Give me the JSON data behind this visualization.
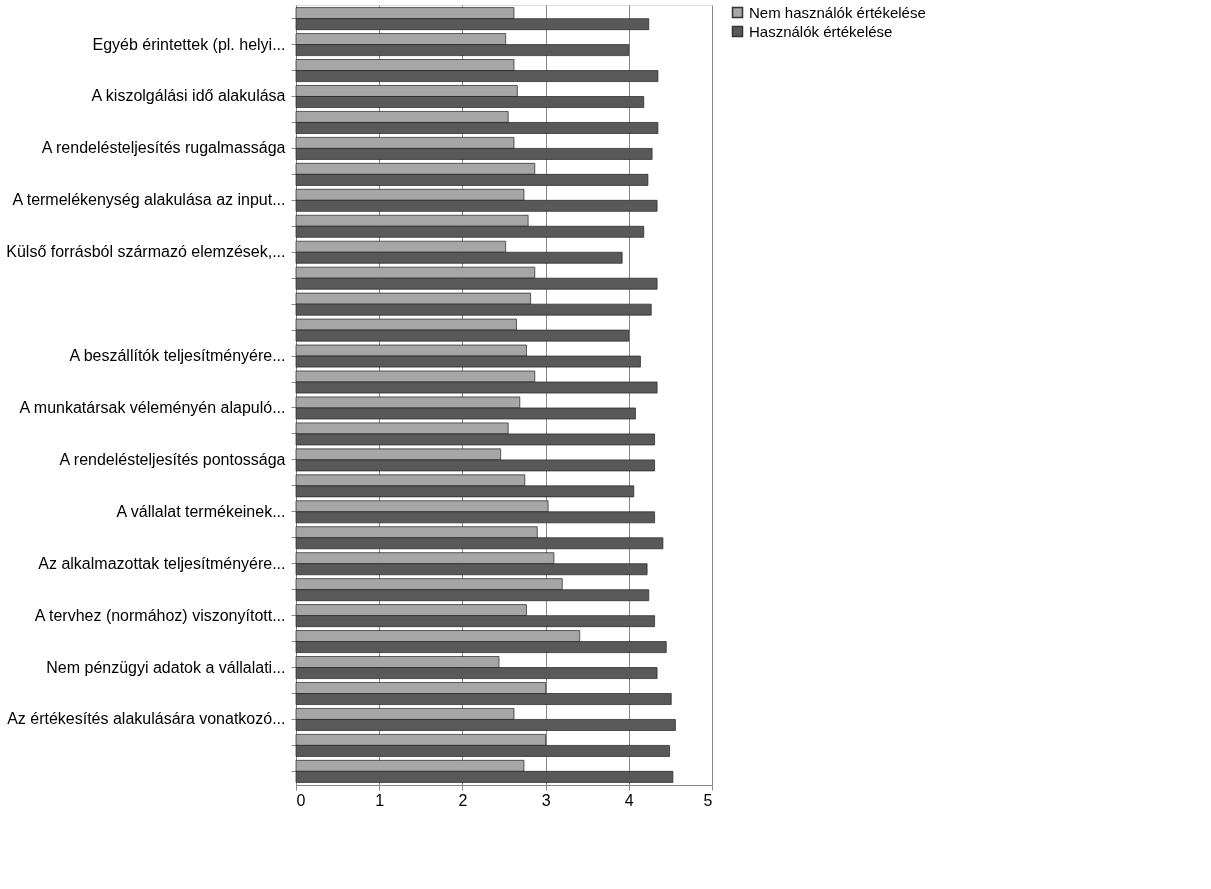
{
  "chart_data": {
    "type": "bar",
    "orientation": "horizontal",
    "categories": [
      null,
      "Egyéb érintettek (pl. helyi...",
      null,
      "A kiszolgálási idő alakulása",
      null,
      "A rendelésteljesítés  rugalmassága",
      null,
      "A termelékenység alakulása az input...",
      null,
      "Külső forrásból származó elemzések,...",
      null,
      null,
      null,
      "A beszállítók teljesítményére...",
      null,
      "A munkatársak véleményén alapuló...",
      null,
      "A rendelésteljesítés  pontossága",
      null,
      "A vállalat termékeinek...",
      null,
      "Az alkalmazottak teljesítményére...",
      null,
      "A tervhez (normához) viszonyított...",
      null,
      "Nem pénzügyi adatok a vállalati...",
      null,
      "Az értékesítés alakulására vonatkozó...",
      null,
      null
    ],
    "series": [
      {
        "name": "Nem használók értékelése",
        "color": "#a6a6a6",
        "values": [
          2.62,
          2.52,
          2.62,
          2.66,
          2.55,
          2.62,
          2.87,
          2.74,
          2.79,
          2.52,
          2.87,
          2.82,
          2.65,
          2.77,
          2.87,
          2.69,
          2.55,
          2.46,
          2.75,
          3.03,
          2.9,
          3.1,
          3.2,
          2.77,
          3.41,
          2.44,
          3.0,
          2.62,
          3.0,
          2.74
        ]
      },
      {
        "name": "Használók értékelése",
        "color": "#595959",
        "values": [
          4.24,
          4.0,
          4.35,
          4.18,
          4.35,
          4.28,
          4.23,
          4.34,
          4.18,
          3.92,
          4.34,
          4.27,
          4.0,
          4.14,
          4.34,
          4.08,
          4.31,
          4.31,
          4.06,
          4.31,
          4.41,
          4.22,
          4.24,
          4.31,
          4.45,
          4.34,
          4.51,
          4.56,
          4.49,
          4.53
        ]
      }
    ],
    "xlim": [
      0,
      5
    ],
    "xticks": [
      0,
      1,
      2,
      3,
      4,
      5
    ],
    "grid": "x",
    "legend": "right"
  }
}
